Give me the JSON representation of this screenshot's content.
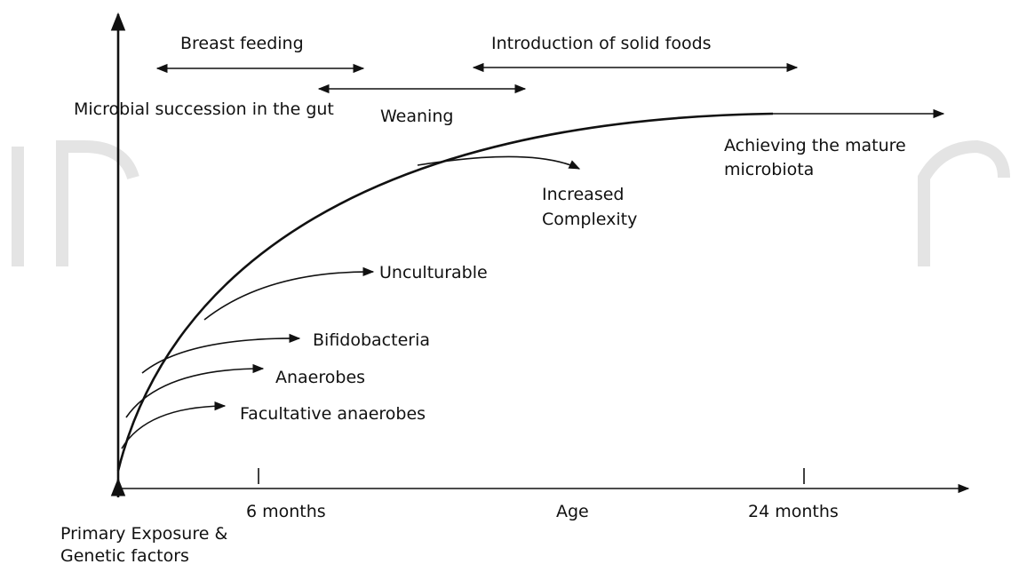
{
  "periods": [
    "Breast feeding",
    "Introduction of solid foods",
    "Weaning"
  ],
  "curve_label": "Microbial succession in the gut",
  "endpoint": [
    "Achieving the mature",
    "microbiota"
  ],
  "branches": [
    "Unculturable",
    "Bifidobacteria",
    "Anaerobes",
    "Facultative anaerobes"
  ],
  "complexity": [
    "Increased",
    "Complexity"
  ],
  "x_axis": {
    "labels": [
      "6 months",
      "Age",
      "24 months"
    ]
  },
  "origin": [
    "Primary Exposure &",
    "Genetic factors"
  ]
}
